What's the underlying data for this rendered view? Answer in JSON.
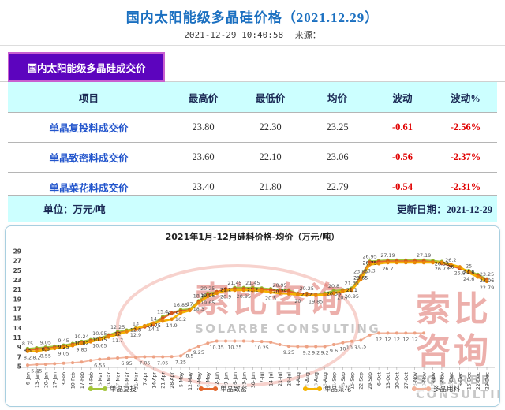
{
  "header": {
    "title": "国内太阳能级多晶硅价格（2021.12.29）",
    "datetime": "2021-12-29 10:40:58",
    "source_label": "来源："
  },
  "table": {
    "tab_title": "国内太阳能级多晶硅成交价",
    "columns": [
      "项目",
      "最高价",
      "最低价",
      "均价",
      "波动",
      "波动%"
    ],
    "rows": [
      {
        "item": "单晶复投料成交价",
        "high": "23.80",
        "low": "22.30",
        "avg": "23.25",
        "change": "-0.61",
        "change_pct": "-2.56%"
      },
      {
        "item": "单晶致密料成交价",
        "high": "23.60",
        "low": "22.10",
        "avg": "23.06",
        "change": "-0.56",
        "change_pct": "-2.37%"
      },
      {
        "item": "单晶菜花料成交价",
        "high": "23.40",
        "low": "21.80",
        "avg": "22.79",
        "change": "-0.54",
        "change_pct": "-2.31%"
      }
    ],
    "unit_label": "单位：万元/吨",
    "update_label": "更新日期：2021-12-29"
  },
  "watermark": {
    "cn": "索比咨询",
    "en": "SOLARBE CONSULTING"
  },
  "colors": {
    "title_blue": "#1a6fc0",
    "tab_purple": "#5c04be",
    "tab_border": "#c95fd0",
    "header_cyan": "#ccffff",
    "item_blue": "#2255cc",
    "negative_red": "#e00000"
  },
  "chart_data": {
    "type": "line",
    "title": "2021年1月-12月硅料价格-均价（万元/吨）",
    "ylabel": "",
    "xlabel": "",
    "ylim": [
      5,
      29
    ],
    "ytick_step": 2,
    "grid": false,
    "legend_position": "bottom",
    "x": [
      "6-Jan",
      "13-Jan",
      "20-Jan",
      "27-Jan",
      "3-Feb",
      "10-Feb",
      "17-Feb",
      "24-Feb",
      "3-Mar",
      "10-Mar",
      "17-Mar",
      "24-Mar",
      "31-Mar",
      "7-Apr",
      "14-Apr",
      "21-Apr",
      "28-Apr",
      "5-May",
      "12-May",
      "19-May",
      "26-May",
      "2-Jun",
      "9-Jun",
      "16-Jun",
      "23-Jun",
      "30-Jun",
      "7-Jul",
      "14-Jul",
      "21-Jul",
      "28-Jul",
      "4-Aug",
      "11-Aug",
      "18-Aug",
      "25-Aug",
      "1-Sep",
      "8-Sep",
      "15-Sep",
      "22-Sep",
      "29-Sep",
      "6-Oct",
      "13-Oct",
      "20-Oct",
      "27-Oct",
      "3-Nov",
      "10-Nov",
      "17-Nov",
      "24-Nov",
      "1-Dec",
      "8-Dec",
      "15-Dec",
      "22-Dec",
      "29-Dec"
    ],
    "series": [
      {
        "name": "单晶复投",
        "color": "#a3c53a",
        "marker": "#8fb32a",
        "label_dy": -4,
        "label_fill": "#555",
        "values": [
          8.75,
          8.9,
          9.05,
          9.25,
          9.45,
          9.8,
          10.24,
          10.6,
          10.95,
          11.6,
          12.25,
          12.6,
          13,
          13.5,
          14,
          15.4,
          16.15,
          16.85,
          17,
          18.7,
          20.25,
          20.6,
          20.9,
          21.45,
          21.45,
          21.45,
          21.35,
          21.2,
          20.95,
          20.95,
          20.25,
          20.25,
          20,
          20.3,
          20.8,
          21,
          21.35,
          23.85,
          26.95,
          27.1,
          27.19,
          27.19,
          27.19,
          27.19,
          27.19,
          27.1,
          26.9,
          26.2,
          25.5,
          25,
          24.2,
          23.25
        ],
        "labels": [
          [
            0,
            "8.75"
          ],
          [
            2,
            "9.05"
          ],
          [
            4,
            "9.45"
          ],
          [
            6,
            "10.24"
          ],
          [
            8,
            "10.95"
          ],
          [
            10,
            "12.25"
          ],
          [
            12,
            "13"
          ],
          [
            14,
            "14"
          ],
          [
            15,
            "15.4"
          ],
          [
            17,
            "16.85"
          ],
          [
            18,
            "17"
          ],
          [
            19,
            "18.7"
          ],
          [
            20,
            "20.25"
          ],
          [
            23,
            "21.45"
          ],
          [
            25,
            "21.45"
          ],
          [
            28,
            "20.95"
          ],
          [
            31,
            "20.25"
          ],
          [
            34,
            "20.8"
          ],
          [
            36,
            "21.35"
          ],
          [
            37,
            "23.85"
          ],
          [
            38,
            "26.95"
          ],
          [
            40,
            "27.19"
          ],
          [
            44,
            "27.19"
          ],
          [
            47,
            "26.2"
          ],
          [
            49,
            "25"
          ],
          [
            51,
            "23.25"
          ]
        ]
      },
      {
        "name": "单晶致密",
        "color": "#e2662c",
        "marker": "#d4551c",
        "label_dy": 3,
        "label_fill": "#222",
        "values": [
          8.5,
          8.65,
          8.8,
          9.0,
          9.25,
          9.6,
          10.02,
          10.4,
          10.75,
          11.4,
          12,
          12.4,
          12.8,
          13.3,
          13.75,
          15.1,
          16.15,
          16.6,
          16.8,
          18.5,
          19.95,
          20.6,
          21.2,
          21.2,
          21.2,
          21.2,
          21.1,
          21,
          20.75,
          20.75,
          20.2,
          20.2,
          19.95,
          20.1,
          20.35,
          20.8,
          21.1,
          23.65,
          26.75,
          26.9,
          26.99,
          26.99,
          26.99,
          26.99,
          26.99,
          26.8,
          26.58,
          26,
          25.5,
          24.8,
          24,
          23.06
        ],
        "labels": [
          [
            0,
            "8.5"
          ],
          [
            2,
            "8.8"
          ],
          [
            4,
            "9.25"
          ],
          [
            6,
            "10.02"
          ],
          [
            8,
            "10.75"
          ],
          [
            10,
            "12"
          ],
          [
            12,
            "12.8"
          ],
          [
            14,
            "13.75"
          ],
          [
            16,
            "16.15"
          ],
          [
            20,
            "19.95"
          ],
          [
            22,
            "21.2"
          ],
          [
            25,
            "21.2"
          ],
          [
            28,
            "20.75"
          ],
          [
            31,
            "20.2"
          ],
          [
            34,
            "20.35"
          ],
          [
            36,
            "21.1"
          ],
          [
            37,
            "23.65"
          ],
          [
            38,
            "26.75"
          ],
          [
            46,
            "26.58"
          ],
          [
            47,
            "26"
          ],
          [
            49,
            "24.8"
          ],
          [
            51,
            "23.06"
          ]
        ]
      },
      {
        "name": "单晶菜花",
        "color": "#f5b301",
        "marker": "#e8860a",
        "label_dy": 10,
        "label_fill": "#555",
        "values": [
          8.2,
          8.2,
          8.55,
          8.8,
          9.05,
          9.4,
          9.83,
          10.2,
          10.65,
          11.2,
          11.7,
          12.3,
          12.9,
          13.5,
          14.1,
          14.5,
          14.9,
          16.2,
          16.7,
          18.3,
          19.65,
          20.3,
          20.9,
          20.95,
          20.95,
          20.9,
          20.8,
          20.5,
          20.3,
          20.2,
          20,
          19.9,
          19.85,
          20,
          20.3,
          20.7,
          20.95,
          23.2,
          26.3,
          26.5,
          26.7,
          26.7,
          26.7,
          26.7,
          26.7,
          26.7,
          26.73,
          26.3,
          25.8,
          24.6,
          23.7,
          22.79
        ],
        "labels": [
          [
            0,
            "8.2"
          ],
          [
            1,
            "8.2"
          ],
          [
            2,
            "8.55"
          ],
          [
            4,
            "9.05"
          ],
          [
            6,
            "9.83"
          ],
          [
            8,
            "10.65"
          ],
          [
            10,
            "11.7"
          ],
          [
            12,
            "12.9"
          ],
          [
            14,
            "14.1"
          ],
          [
            16,
            "14.9"
          ],
          [
            17,
            "16.2"
          ],
          [
            19,
            "18.3"
          ],
          [
            20,
            "19.65"
          ],
          [
            22,
            "20.9"
          ],
          [
            24,
            "20.95"
          ],
          [
            27,
            "20.5"
          ],
          [
            30,
            "20"
          ],
          [
            32,
            "19.85"
          ],
          [
            35,
            "20.7"
          ],
          [
            36,
            "20.95"
          ],
          [
            38,
            "26.3"
          ],
          [
            40,
            "26.7"
          ],
          [
            46,
            "26.73"
          ],
          [
            48,
            "25.8"
          ],
          [
            49,
            "24.6"
          ],
          [
            51,
            "22.79"
          ]
        ]
      },
      {
        "name": "多晶用料",
        "color": "#f2b49c",
        "marker": "#eda183",
        "label_dy": 10,
        "label_fill": "#555",
        "values": [
          5.3,
          5.45,
          5.5,
          5.6,
          5.7,
          5.8,
          5.95,
          6.3,
          6.55,
          6.7,
          6.8,
          6.95,
          6.95,
          7.05,
          7.05,
          7.05,
          7.1,
          7.25,
          8.5,
          9.25,
          9.9,
          10.35,
          10.35,
          10.35,
          10.35,
          10.3,
          10.25,
          10.1,
          9.6,
          9.25,
          9.2,
          9.2,
          9.2,
          9.2,
          9.6,
          10,
          10.3,
          10.5,
          11.6,
          12,
          12,
          12,
          12,
          12,
          12,
          null,
          null,
          null,
          null,
          null,
          null,
          null
        ],
        "labels": [
          [
            1,
            "5.45"
          ],
          [
            8,
            "6.55"
          ],
          [
            11,
            "6.95"
          ],
          [
            13,
            "7.05"
          ],
          [
            15,
            "7.05"
          ],
          [
            17,
            "7.25"
          ],
          [
            18,
            "8.5"
          ],
          [
            19,
            "9.25"
          ],
          [
            21,
            "10.35"
          ],
          [
            23,
            "10.35"
          ],
          [
            26,
            "10.25"
          ],
          [
            29,
            "9.25"
          ],
          [
            31,
            "9.2"
          ],
          [
            32,
            "9.2"
          ],
          [
            33,
            "9.2"
          ],
          [
            34,
            "9.6"
          ],
          [
            35,
            "10"
          ],
          [
            36,
            "10.3"
          ],
          [
            37,
            "10.5"
          ],
          [
            39,
            "12"
          ],
          [
            40,
            "12"
          ],
          [
            41,
            "12"
          ],
          [
            42,
            "12"
          ],
          [
            43,
            "12"
          ]
        ]
      }
    ]
  }
}
